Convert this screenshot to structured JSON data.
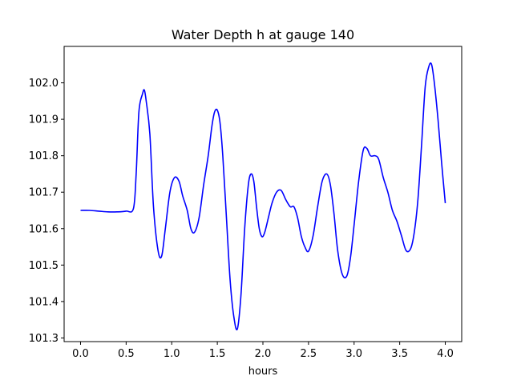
{
  "chart_data": {
    "type": "line",
    "title": "Water Depth h at gauge 140",
    "xlabel": "hours",
    "ylabel": "",
    "xlim": [
      -0.18,
      4.18
    ],
    "ylim": [
      101.29,
      102.1
    ],
    "xticks": [
      0.0,
      0.5,
      1.0,
      1.5,
      2.0,
      2.5,
      3.0,
      3.5,
      4.0
    ],
    "xtick_labels": [
      "0.0",
      "0.5",
      "1.0",
      "1.5",
      "2.0",
      "2.5",
      "3.0",
      "3.5",
      "4.0"
    ],
    "yticks": [
      101.3,
      101.4,
      101.5,
      101.6,
      101.7,
      101.8,
      101.9,
      102.0
    ],
    "ytick_labels": [
      "101.3",
      "101.4",
      "101.5",
      "101.6",
      "101.7",
      "101.8",
      "101.9",
      "102.0"
    ],
    "grid": false,
    "series": [
      {
        "color": "#0000ff",
        "x": [
          0.0,
          0.1,
          0.2,
          0.3,
          0.4,
          0.5,
          0.58,
          0.61,
          0.64,
          0.68,
          0.7,
          0.72,
          0.76,
          0.8,
          0.85,
          0.89,
          0.93,
          0.98,
          1.03,
          1.08,
          1.12,
          1.17,
          1.21,
          1.25,
          1.3,
          1.35,
          1.4,
          1.44,
          1.47,
          1.5,
          1.53,
          1.56,
          1.6,
          1.64,
          1.68,
          1.72,
          1.76,
          1.8,
          1.84,
          1.87,
          1.9,
          1.93,
          1.96,
          1.99,
          2.02,
          2.06,
          2.1,
          2.15,
          2.2,
          2.25,
          2.3,
          2.34,
          2.38,
          2.42,
          2.46,
          2.5,
          2.55,
          2.6,
          2.65,
          2.7,
          2.74,
          2.78,
          2.82,
          2.87,
          2.92,
          2.96,
          3.0,
          3.05,
          3.1,
          3.14,
          3.18,
          3.23,
          3.27,
          3.32,
          3.37,
          3.42,
          3.47,
          3.52,
          3.57,
          3.62,
          3.66,
          3.7,
          3.74,
          3.78,
          3.82,
          3.85,
          3.88,
          3.92,
          3.96,
          4.0
        ],
        "y": [
          101.65,
          101.65,
          101.648,
          101.646,
          101.646,
          101.648,
          101.655,
          101.75,
          101.92,
          101.97,
          101.98,
          101.95,
          101.86,
          101.66,
          101.54,
          101.525,
          101.6,
          101.7,
          101.74,
          101.73,
          101.69,
          101.65,
          101.6,
          101.59,
          101.63,
          101.72,
          101.8,
          101.88,
          101.92,
          101.925,
          101.89,
          101.8,
          101.63,
          101.46,
          101.36,
          101.325,
          101.42,
          101.6,
          101.72,
          101.75,
          101.73,
          101.66,
          101.6,
          101.578,
          101.59,
          101.63,
          101.67,
          101.7,
          101.705,
          101.68,
          101.66,
          101.66,
          101.63,
          101.58,
          101.55,
          101.538,
          101.58,
          101.66,
          101.73,
          101.75,
          101.72,
          101.64,
          101.54,
          101.475,
          101.47,
          101.52,
          101.61,
          101.73,
          101.815,
          101.82,
          101.8,
          101.8,
          101.79,
          101.74,
          101.7,
          101.65,
          101.62,
          101.58,
          101.54,
          101.545,
          101.59,
          101.68,
          101.83,
          101.99,
          102.045,
          102.05,
          102.0,
          101.9,
          101.78,
          101.67
        ]
      }
    ]
  }
}
